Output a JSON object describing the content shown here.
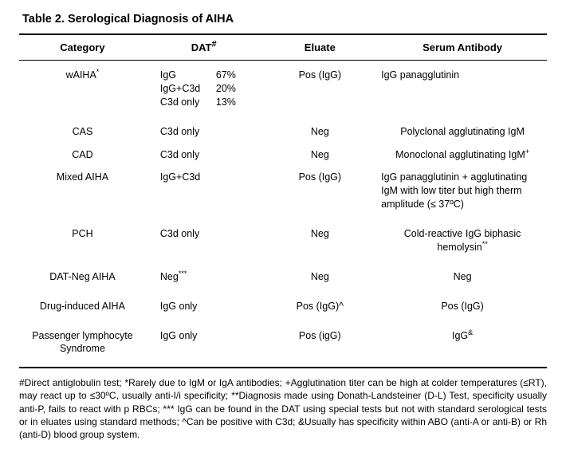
{
  "title": "Table 2. Serological Diagnosis of AIHA",
  "headers": {
    "category": "Category",
    "dat": "DAT",
    "dat_sup": "#",
    "eluate": "Eluate",
    "serum": "Serum Antibody"
  },
  "rows": {
    "waiha": {
      "cat": "wAIHA",
      "cat_sup": "*",
      "dat": [
        {
          "lab": "IgG",
          "pct": "67%"
        },
        {
          "lab": "IgG+C3d",
          "pct": "20%"
        },
        {
          "lab": "C3d only",
          "pct": "13%"
        }
      ],
      "eluate": "Pos (IgG)",
      "serum": "IgG panagglutinin"
    },
    "cas": {
      "cat": "CAS",
      "dat": "C3d only",
      "eluate": "Neg",
      "serum": "Polyclonal agglutinating IgM"
    },
    "cad": {
      "cat": "CAD",
      "dat": "C3d only",
      "eluate": "Neg",
      "serum_pre": "Monoclonal agglutinating IgM",
      "serum_sup": "+"
    },
    "mixed": {
      "cat": "Mixed AIHA",
      "dat": "IgG+C3d",
      "eluate": "Pos (IgG)",
      "serum": "IgG panagglutinin + agglutinating IgM with low titer but high therm amplitude (≤ 37ºC)"
    },
    "pch": {
      "cat": "PCH",
      "dat": "C3d only",
      "eluate": "Neg",
      "serum_pre": "Cold-reactive IgG biphasic hemolysin",
      "serum_sup": "**"
    },
    "datneg": {
      "cat": "DAT-Neg AIHA",
      "dat_pre": "Neg",
      "dat_sup": "***",
      "eluate": "Neg",
      "serum": "Neg"
    },
    "drug": {
      "cat": "Drug-induced AIHA",
      "dat": "IgG only",
      "eluate": "Pos (IgG)^",
      "serum": "Pos (IgG)"
    },
    "pls": {
      "cat": "Passenger lymphocyte Syndrome",
      "dat": "IgG only",
      "eluate": "Pos (igG)",
      "serum_pre": "IgG",
      "serum_sup": "&"
    }
  },
  "footnotes": "#Direct antiglobulin test; *Rarely due to IgM or IgA antibodies; +Agglutination titer can be high at colder temperatures (≤RT), may react up to ≤30ºC, usually anti-I/i specificity; **Diagnosis made using Donath-Landsteiner (D-L) Test, specificity usually anti-P, fails to react with p RBCs; *** IgG can be found in the DAT using special tests but not with standard serological tests or in eluates using standard methods; ^Can be positive with C3d; &Usually has specificity within ABO (anti-A or anti-B) or Rh (anti-D) blood group system."
}
